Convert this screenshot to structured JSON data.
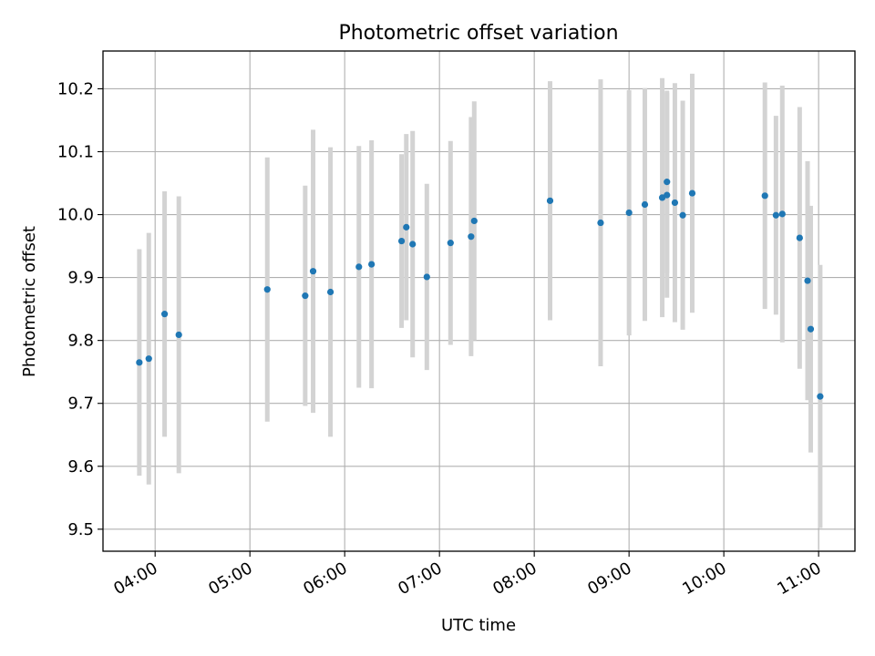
{
  "chart_data": {
    "type": "scatter",
    "title": "Photometric offset variation",
    "xlabel": "UTC time",
    "ylabel": "Photometric offset",
    "x_ticks": [
      "04:00",
      "05:00",
      "06:00",
      "07:00",
      "08:00",
      "09:00",
      "10:00",
      "11:00"
    ],
    "y_ticks": [
      "9.5",
      "9.6",
      "9.7",
      "9.8",
      "9.9",
      "10.0",
      "10.1",
      "10.2"
    ],
    "xlim": [
      "03:27",
      "11:23"
    ],
    "ylim": [
      9.465,
      10.26
    ],
    "grid": true,
    "colors": {
      "points": "#1f77b4",
      "errorbars": "#d3d3d3",
      "grid": "#b0b0b0"
    },
    "points": [
      {
        "time": "03:50",
        "y": 9.765,
        "yerr": 0.18
      },
      {
        "time": "03:56",
        "y": 9.771,
        "yerr": 0.2
      },
      {
        "time": "04:06",
        "y": 9.842,
        "yerr": 0.195
      },
      {
        "time": "04:15",
        "y": 9.809,
        "yerr": 0.22
      },
      {
        "time": "05:11",
        "y": 9.881,
        "yerr": 0.21
      },
      {
        "time": "05:35",
        "y": 9.871,
        "yerr": 0.175
      },
      {
        "time": "05:40",
        "y": 9.91,
        "yerr": 0.225
      },
      {
        "time": "05:51",
        "y": 9.877,
        "yerr": 0.23
      },
      {
        "time": "06:09",
        "y": 9.917,
        "yerr": 0.192
      },
      {
        "time": "06:17",
        "y": 9.921,
        "yerr": 0.197
      },
      {
        "time": "06:36",
        "y": 9.958,
        "yerr": 0.138
      },
      {
        "time": "06:39",
        "y": 9.98,
        "yerr": 0.148
      },
      {
        "time": "06:43",
        "y": 9.953,
        "yerr": 0.18
      },
      {
        "time": "06:52",
        "y": 9.901,
        "yerr": 0.148
      },
      {
        "time": "07:07",
        "y": 9.955,
        "yerr": 0.162
      },
      {
        "time": "07:20",
        "y": 9.965,
        "yerr": 0.19
      },
      {
        "time": "07:22",
        "y": 9.99,
        "yerr": 0.19
      },
      {
        "time": "08:10",
        "y": 10.022,
        "yerr": 0.19
      },
      {
        "time": "08:42",
        "y": 9.987,
        "yerr": 0.228
      },
      {
        "time": "09:00",
        "y": 10.003,
        "yerr": 0.195
      },
      {
        "time": "09:10",
        "y": 10.016,
        "yerr": 0.185
      },
      {
        "time": "09:21",
        "y": 10.027,
        "yerr": 0.19
      },
      {
        "time": "09:24",
        "y": 10.052,
        "yerr": 0.145
      },
      {
        "time": "09:24",
        "y": 10.031,
        "yerr": 0.163
      },
      {
        "time": "09:29",
        "y": 10.019,
        "yerr": 0.19
      },
      {
        "time": "09:34",
        "y": 9.999,
        "yerr": 0.182
      },
      {
        "time": "09:40",
        "y": 10.034,
        "yerr": 0.19
      },
      {
        "time": "10:26",
        "y": 10.03,
        "yerr": 0.18
      },
      {
        "time": "10:33",
        "y": 9.999,
        "yerr": 0.158
      },
      {
        "time": "10:37",
        "y": 10.001,
        "yerr": 0.204
      },
      {
        "time": "10:48",
        "y": 9.963,
        "yerr": 0.208
      },
      {
        "time": "10:53",
        "y": 9.895,
        "yerr": 0.19
      },
      {
        "time": "10:55",
        "y": 9.818,
        "yerr": 0.196
      },
      {
        "time": "11:01",
        "y": 9.711,
        "yerr": 0.209
      }
    ]
  }
}
